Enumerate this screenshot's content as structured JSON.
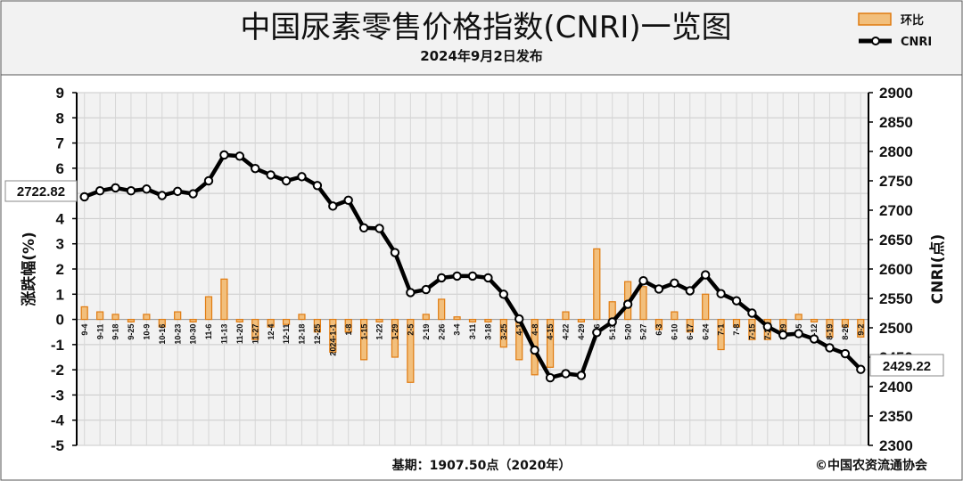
{
  "title": "中国尿素零售价格指数(CNRI)一览图",
  "subtitle": "2024年9月2日发布",
  "legend": {
    "bar": "环比",
    "line": "CNRI"
  },
  "footer": {
    "base": "基期：1907.50点（2020年）",
    "copyright": "©中国农资流通协会"
  },
  "callouts": {
    "start": "2722.82",
    "end": "2429.22"
  },
  "colors": {
    "bar_fill": "#f2bf7c",
    "bar_stroke": "#e07b10",
    "line": "#000000",
    "header_bg": "#f2f2f2",
    "plot_bg": "#f2f2f2"
  },
  "chart_data": {
    "type": "bar+line",
    "categories": [
      "9-4",
      "9-11",
      "9-18",
      "9-25",
      "10-9",
      "10-16",
      "10-23",
      "10-30",
      "11-6",
      "11-13",
      "11-20",
      "11-27",
      "12-4",
      "12-11",
      "12-18",
      "12-25",
      "2024-1-1",
      "1-8",
      "1-15",
      "1-22",
      "1-29",
      "2-5",
      "2-19",
      "2-26",
      "3-4",
      "3-11",
      "3-18",
      "3-25",
      "4-1",
      "4-8",
      "4-15",
      "4-22",
      "4-29",
      "5-6",
      "5-13",
      "5-20",
      "5-27",
      "6-3",
      "6-10",
      "6-17",
      "6-24",
      "7-1",
      "7-8",
      "7-15",
      "7-22",
      "7-29",
      "8-5",
      "8-12",
      "8-19",
      "8-26",
      "9-2"
    ],
    "series": [
      {
        "name": "环比",
        "type": "bar",
        "axis": "left",
        "values": [
          0.5,
          0.3,
          0.2,
          -0.1,
          0.2,
          -0.3,
          0.3,
          -0.1,
          0.9,
          1.6,
          -0.1,
          -0.8,
          -0.3,
          -0.2,
          0.2,
          -0.5,
          -1.3,
          -0.5,
          -1.6,
          -0.1,
          -1.5,
          -2.5,
          0.2,
          0.8,
          0.1,
          -0.1,
          -0.1,
          -1.1,
          -1.6,
          -2.2,
          -1.9,
          0.3,
          -0.1,
          2.8,
          0.7,
          1.5,
          1.3,
          -0.4,
          0.3,
          -0.5,
          1.0,
          -1.2,
          -0.3,
          -0.8,
          -0.8,
          -0.6,
          0.2,
          -0.1,
          -0.7,
          -0.3,
          -0.7
        ]
      },
      {
        "name": "CNRI",
        "type": "line",
        "axis": "right",
        "values": [
          2722.82,
          2733,
          2738,
          2733,
          2736,
          2725,
          2732,
          2728,
          2750,
          2794,
          2792,
          2771,
          2760,
          2750,
          2757,
          2742,
          2707,
          2717,
          2670,
          2669,
          2628,
          2560,
          2565,
          2585,
          2588,
          2588,
          2585,
          2557,
          2515,
          2462,
          2415,
          2422,
          2419,
          2492,
          2510,
          2540,
          2580,
          2566,
          2576,
          2563,
          2590,
          2558,
          2546,
          2525,
          2502,
          2488,
          2490,
          2481,
          2466,
          2456,
          2429.22
        ]
      }
    ],
    "y_left": {
      "label": "涨跌幅(%)",
      "range": [
        -5,
        9
      ],
      "ticks": [
        9,
        8,
        7,
        6,
        5,
        4,
        3,
        2,
        1,
        0,
        -1,
        -2,
        -3,
        -4,
        -5
      ]
    },
    "y_right": {
      "label": "CNRI(点)",
      "range": [
        2300,
        2900
      ],
      "ticks": [
        2900,
        2850,
        2800,
        2750,
        2700,
        2650,
        2600,
        2550,
        2500,
        2450,
        2400,
        2350,
        2300
      ]
    },
    "grid": true,
    "legend_position": "top-right"
  }
}
